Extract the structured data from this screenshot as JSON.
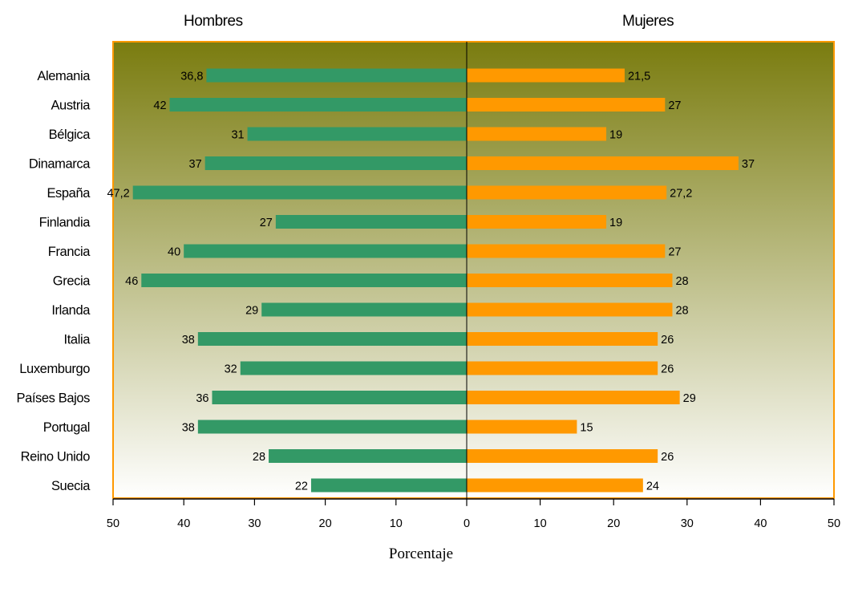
{
  "chart_data": {
    "type": "bar",
    "orientation": "horizontal",
    "layout": "population-pyramid",
    "categories": [
      "Alemania",
      "Austria",
      "Bélgica",
      "Dinamarca",
      "España",
      "Finlandia",
      "Francia",
      "Grecia",
      "Irlanda",
      "Italia",
      "Luxemburgo",
      "Países Bajos",
      "Portugal",
      "Reino Unido",
      "Suecia"
    ],
    "series": [
      {
        "name": "Hombres",
        "values": [
          36.8,
          42,
          31,
          37,
          47.2,
          27,
          40,
          46,
          29,
          38,
          32,
          36,
          38,
          28,
          22
        ],
        "labels": [
          "36,8",
          "42",
          "31",
          "37",
          "47,2",
          "27",
          "40",
          "46",
          "29",
          "38",
          "32",
          "36",
          "38",
          "28",
          "22"
        ],
        "color": "#339966",
        "side": "left"
      },
      {
        "name": "Mujeres",
        "values": [
          21.5,
          27,
          19,
          37,
          27.2,
          19,
          27,
          28,
          28,
          26,
          26,
          29,
          15,
          26,
          24
        ],
        "labels": [
          "21,5",
          "27",
          "19",
          "37",
          "27,2",
          "19",
          "27",
          "28",
          "28",
          "26",
          "26",
          "29",
          "15",
          "26",
          "24"
        ],
        "color": "#FF9900",
        "side": "right"
      }
    ],
    "xlabel": "Porcentaje",
    "xlim": [
      -50,
      50
    ],
    "xticks": [
      -50,
      -40,
      -30,
      -20,
      -10,
      0,
      10,
      20,
      30,
      40,
      50
    ],
    "xtick_labels": [
      "50",
      "40",
      "30",
      "20",
      "10",
      "0",
      "10",
      "20",
      "30",
      "40",
      "50"
    ],
    "grid": false,
    "plot_background": {
      "gradient_top": "#7A7C0F",
      "gradient_bottom": "#FFFFFF",
      "border": "#FF9900"
    }
  }
}
